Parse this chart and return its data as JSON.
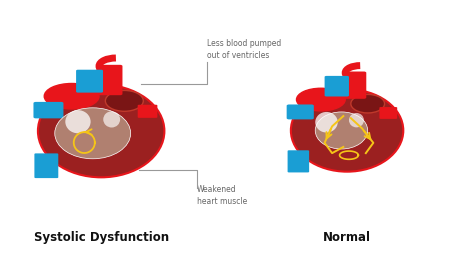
{
  "bg_color": "#ffffff",
  "title_left": "Systolic Dysfunction",
  "title_right": "Normal",
  "label1": "Less blood pumped\nout of ventricles",
  "label2": "Weakened\nheart muscle",
  "colors": {
    "red_bright": "#e8151b",
    "red_dark": "#7a1515",
    "red_mid": "#c0392b",
    "blue": "#1a9ed4",
    "blue_dark": "#1565c0",
    "white": "#ffffff",
    "yellow": "#f5c518",
    "gray_text": "#666666",
    "black_text": "#111111",
    "inner_chamber": "#b08070",
    "heart_outer": "#9b2020"
  }
}
